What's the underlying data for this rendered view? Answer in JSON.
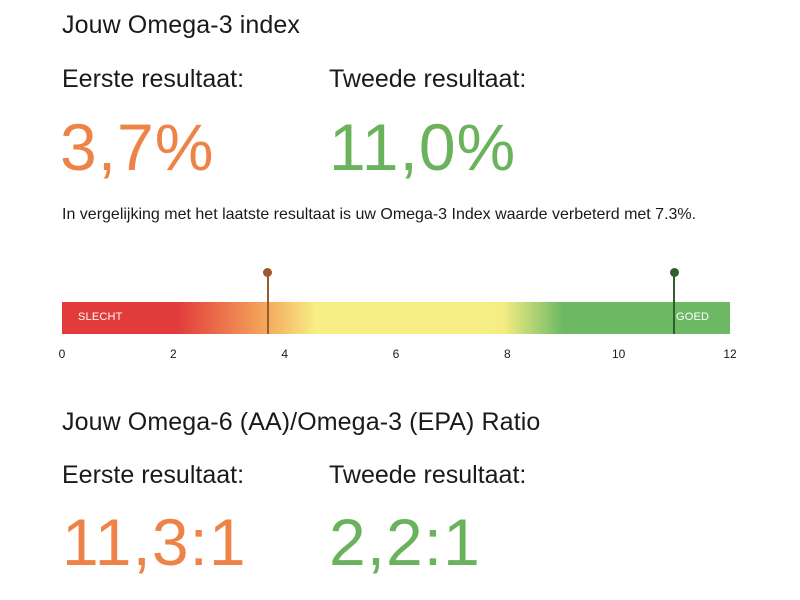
{
  "omega3": {
    "title": "Jouw Omega-3 index",
    "first_label": "Eerste resultaat:",
    "second_label": "Tweede resultaat:",
    "first_value": "3,7%",
    "second_value": "11,0%",
    "comparison_text": "In vergelijking met het laatste resultaat is uw Omega-3 Index waarde verbeterd met 7.3%.",
    "scale": {
      "min": 0,
      "max": 12,
      "ticks": [
        "0",
        "2",
        "4",
        "6",
        "8",
        "10",
        "12"
      ],
      "low_label": "SLECHT",
      "high_label": "GOED",
      "first_marker_value": 3.7,
      "second_marker_value": 11.0
    }
  },
  "ratio": {
    "title": "Jouw Omega-6 (AA)/Omega-3 (EPA) Ratio",
    "first_label": "Eerste resultaat:",
    "second_label": "Tweede resultaat:",
    "first_value": "11,3:1",
    "second_value": "2,2:1"
  },
  "colors": {
    "first_value": "#ee8348",
    "second_value": "#6ab25c",
    "first_marker": "#9a5a2e",
    "second_marker": "#2f5e2f",
    "bar_red": "#e23b3b",
    "bar_orange": "#f3a259",
    "bar_yellow": "#f7ee86",
    "bar_green": "#6db963"
  }
}
